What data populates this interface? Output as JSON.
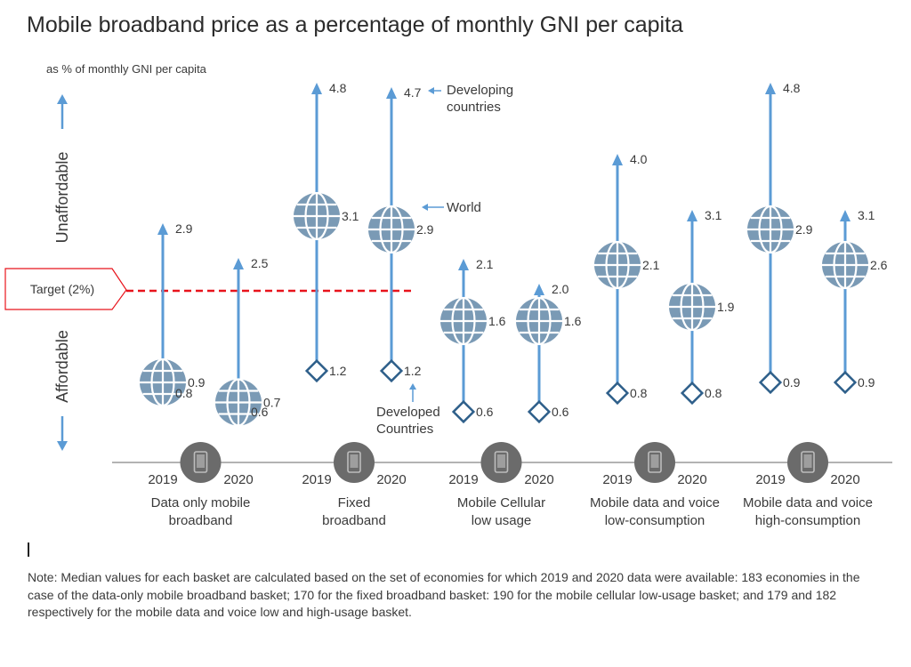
{
  "title": "Mobile broadband price as a percentage of monthly GNI per capita",
  "chart_data": {
    "type": "range",
    "unit_label": "as % of monthly GNI per capita",
    "axis_up_label": "Unaffordable",
    "axis_down_label": "Affordable",
    "target": {
      "label": "Target (2%)",
      "value": 2
    },
    "groups": [
      {
        "label": "Data only mobile broadband",
        "points": [
          {
            "year": "2019",
            "developing": 2.9,
            "world": 0.9,
            "developed": 0.8
          },
          {
            "year": "2020",
            "developing": 2.5,
            "world": 0.7,
            "developed": 0.6
          }
        ]
      },
      {
        "label": "Fixed broadband",
        "points": [
          {
            "year": "2019",
            "developing": 4.8,
            "world": 3.1,
            "developed": 1.2
          },
          {
            "year": "2020",
            "developing": 4.7,
            "world": 2.9,
            "developed": 1.2
          }
        ]
      },
      {
        "label": "Mobile Cellular low usage",
        "points": [
          {
            "year": "2019",
            "developing": 2.1,
            "world": 1.6,
            "developed": 0.6
          },
          {
            "year": "2020",
            "developing": 2.0,
            "world": 1.6,
            "developed": 0.6
          }
        ]
      },
      {
        "label": "Mobile data and voice low-consumption",
        "points": [
          {
            "year": "2019",
            "developing": 4.0,
            "world": 2.1,
            "developed": 0.8
          },
          {
            "year": "2020",
            "developing": 3.1,
            "world": 1.9,
            "developed": 0.8
          }
        ]
      },
      {
        "label": "Mobile data and voice high-consumption",
        "points": [
          {
            "year": "2019",
            "developing": 4.8,
            "world": 2.9,
            "developed": 0.9
          },
          {
            "year": "2020",
            "developing": 3.1,
            "world": 2.6,
            "developed": 0.9
          }
        ]
      }
    ],
    "annotations": {
      "developing": "Developing countries",
      "world": "World",
      "developed": "Developed Countries"
    },
    "colors": {
      "arrow": "#5b9bd5",
      "globe": "#7a9ab5",
      "diamond": "#2e5f8a",
      "target": "#e8141c",
      "axis": "#9a9a9a",
      "icon": "#6b6b6b"
    }
  },
  "note": "Note: Median values for each basket are calculated based on the set of economies for which 2019 and 2020 data were available: 183 economies in the case of the data-only mobile broadband basket; 170 for the fixed broadband basket:  190 for the mobile cellular low-usage basket; and 179 and 182 respectively for the mobile data and voice low and high-usage basket."
}
